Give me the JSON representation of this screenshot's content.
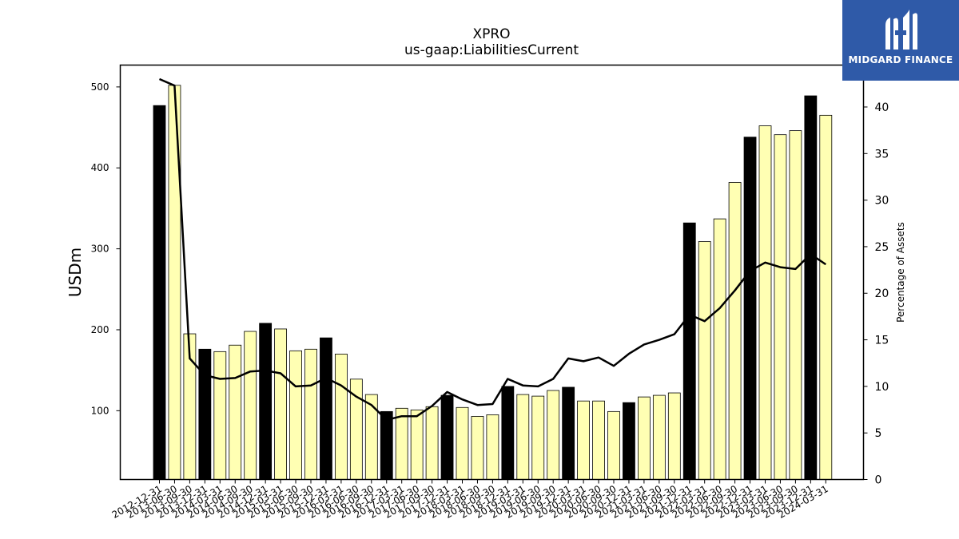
{
  "chart_data": {
    "type": "bar",
    "title": "XPRO",
    "subtitle": "us-gaap:LiabilitiesCurrent",
    "ylabel": "USDm",
    "ylabel_right": "Percentage of Assets",
    "ylim": [
      15,
      527
    ],
    "ylim_right": [
      0,
      44.5
    ],
    "yticks": [
      100,
      200,
      300,
      400,
      500
    ],
    "yticks_right": [
      0,
      5,
      10,
      15,
      20,
      25,
      30,
      35,
      40
    ],
    "grid": false,
    "categories": [
      "2012-12-31",
      "2013-06-30",
      "2013-09-30",
      "2013-12-31",
      "2014-03-31",
      "2014-06-30",
      "2014-09-30",
      "2014-12-31",
      "2015-03-31",
      "2015-06-30",
      "2015-09-30",
      "2015-12-31",
      "2016-03-31",
      "2016-06-30",
      "2016-09-30",
      "2016-12-31",
      "2017-03-31",
      "2017-06-30",
      "2017-09-30",
      "2017-12-31",
      "2018-03-31",
      "2018-06-30",
      "2018-09-30",
      "2018-12-31",
      "2019-03-31",
      "2019-06-30",
      "2019-09-30",
      "2019-12-31",
      "2020-03-31",
      "2020-06-30",
      "2020-09-30",
      "2020-12-31",
      "2021-03-31",
      "2021-06-30",
      "2021-09-30",
      "2021-12-31",
      "2022-03-31",
      "2022-06-30",
      "2022-09-30",
      "2022-12-31",
      "2023-03-31",
      "2023-06-30",
      "2023-09-30",
      "2023-12-31",
      "2024-03-31"
    ],
    "series": [
      {
        "type": "bar",
        "values": [
          477,
          502,
          195,
          176,
          173,
          181,
          198,
          208,
          201,
          174,
          176,
          190,
          170,
          139,
          120,
          99,
          103,
          101,
          105,
          119,
          104,
          93,
          95,
          130,
          120,
          118,
          125,
          129,
          112,
          112,
          99,
          110,
          117,
          119,
          122,
          332,
          309,
          337,
          382,
          438,
          452,
          441,
          446,
          489,
          465
        ],
        "highlight": [
          true,
          false,
          false,
          true,
          false,
          false,
          false,
          true,
          false,
          false,
          false,
          true,
          false,
          false,
          false,
          true,
          false,
          false,
          false,
          true,
          false,
          false,
          false,
          true,
          false,
          false,
          false,
          true,
          false,
          false,
          false,
          true,
          false,
          false,
          false,
          true,
          false,
          false,
          false,
          true,
          false,
          false,
          false,
          true,
          false
        ],
        "color_highlight": "#000000",
        "color_normal": "#ffffb3",
        "edge_color": "#000000"
      },
      {
        "type": "line",
        "axis": "right",
        "color": "#000000",
        "values": [
          43.0,
          42.3,
          13.0,
          11.2,
          10.8,
          10.9,
          11.6,
          11.7,
          11.4,
          10.0,
          10.1,
          10.9,
          10.1,
          8.9,
          8.0,
          6.4,
          6.8,
          6.8,
          7.9,
          9.4,
          8.6,
          8.0,
          8.1,
          10.8,
          10.1,
          10.0,
          10.8,
          13.0,
          12.7,
          13.1,
          12.2,
          13.5,
          14.5,
          15.0,
          15.6,
          17.7,
          17.0,
          18.4,
          20.3,
          22.4,
          23.3,
          22.8,
          22.6,
          24.2,
          23.1
        ]
      }
    ]
  },
  "branding": {
    "logo_text": "MIDGARD FINANCE",
    "logo_bg": "#2f5aa8",
    "logo_icon": "midgard-m-icon"
  }
}
